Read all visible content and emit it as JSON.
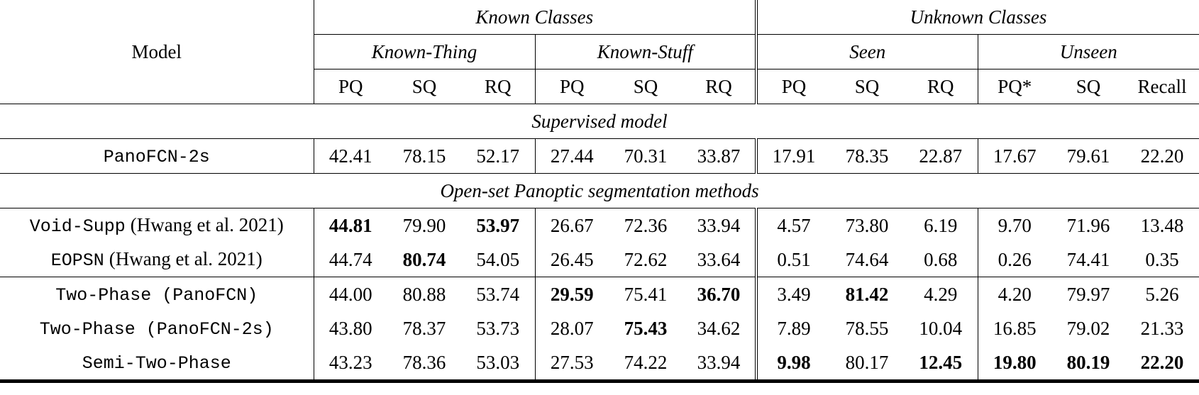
{
  "table": {
    "header": {
      "model": "Model",
      "groups": [
        {
          "label": "Known Classes",
          "subgroups": [
            {
              "label": "Known-Thing",
              "columns": [
                "PQ",
                "SQ",
                "RQ"
              ]
            },
            {
              "label": "Known-Stuff",
              "columns": [
                "PQ",
                "SQ",
                "RQ"
              ]
            }
          ]
        },
        {
          "label": "Unknown Classes",
          "subgroups": [
            {
              "label": "Seen",
              "columns": [
                "PQ",
                "SQ",
                "RQ"
              ]
            },
            {
              "label": "Unseen",
              "columns": [
                "PQ*",
                "SQ",
                "Recall"
              ]
            }
          ]
        }
      ]
    },
    "sections": [
      {
        "title": "Supervised model",
        "blocks": [
          [
            {
              "model": "PanoFCN-2s",
              "values": [
                "42.41",
                "78.15",
                "52.17",
                "27.44",
                "70.31",
                "33.87",
                "17.91",
                "78.35",
                "22.87",
                "17.67",
                "79.61",
                "22.20"
              ],
              "bold": []
            }
          ]
        ]
      },
      {
        "title": "Open-set Panoptic segmentation methods",
        "blocks": [
          [
            {
              "model": "Void-Supp",
              "cite": "(Hwang et al. 2021)",
              "values": [
                "44.81",
                "79.90",
                "53.97",
                "26.67",
                "72.36",
                "33.94",
                "4.57",
                "73.80",
                "6.19",
                "9.70",
                "71.96",
                "13.48"
              ],
              "bold": [
                0,
                2
              ]
            },
            {
              "model": "EOPSN",
              "cite": "(Hwang et al. 2021)",
              "values": [
                "44.74",
                "80.74",
                "54.05",
                "26.45",
                "72.62",
                "33.64",
                "0.51",
                "74.64",
                "0.68",
                "0.26",
                "74.41",
                "0.35"
              ],
              "bold": [
                1
              ]
            }
          ],
          [
            {
              "model": "Two-Phase (PanoFCN)",
              "values": [
                "44.00",
                "80.88",
                "53.74",
                "29.59",
                "75.41",
                "36.70",
                "3.49",
                "81.42",
                "4.29",
                "4.20",
                "79.97",
                "5.26"
              ],
              "bold": [
                3,
                5,
                7
              ]
            },
            {
              "model": "Two-Phase (PanoFCN-2s)",
              "values": [
                "43.80",
                "78.37",
                "53.73",
                "28.07",
                "75.43",
                "34.62",
                "7.89",
                "78.55",
                "10.04",
                "16.85",
                "79.02",
                "21.33"
              ],
              "bold": [
                4
              ]
            },
            {
              "model": "Semi-Two-Phase",
              "values": [
                "43.23",
                "78.36",
                "53.03",
                "27.53",
                "74.22",
                "33.94",
                "9.98",
                "80.17",
                "12.45",
                "19.80",
                "80.19",
                "22.20"
              ],
              "bold": [
                6,
                8,
                9,
                10,
                11
              ]
            }
          ]
        ]
      }
    ]
  }
}
